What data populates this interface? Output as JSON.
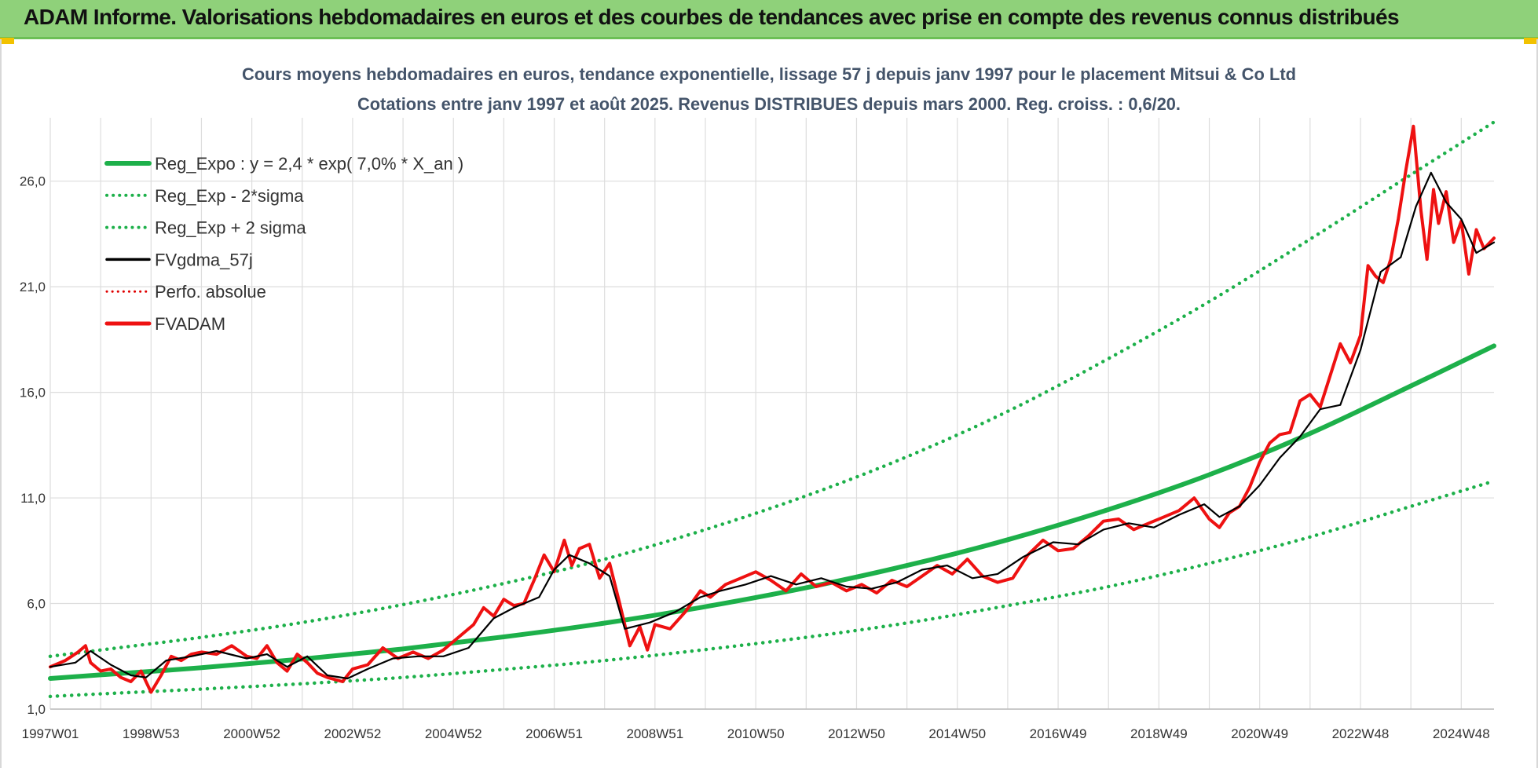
{
  "header": {
    "banner_title": "ADAM Informe. Valorisations hebdomadaires en euros et des courbes de tendances avec prise en compte des revenus connus distribués"
  },
  "colors": {
    "banner_bg": "#8fd17a",
    "regression": "#1db04a",
    "band": "#1db04a",
    "smoothed": "#000000",
    "perf": "#e00000",
    "fvadam": "#ee1111",
    "grid": "#dddddd"
  },
  "chart_data": {
    "type": "line",
    "title": "Cours moyens hebdomadaires en euros, tendance exponentielle, lissage 57 j depuis janv 1997 pour le placement Mitsui & Co Ltd",
    "subtitle": "Cotations entre janv 1997 et août 2025. Revenus DISTRIBUES depuis mars 2000. Reg. croiss. : 0,6/20.",
    "xlabel": "",
    "ylabel": "",
    "x_range": [
      1997.0,
      2025.65
    ],
    "ylim": [
      1.0,
      29.0
    ],
    "y_ticks": [
      1.0,
      6.0,
      11.0,
      16.0,
      21.0,
      26.0
    ],
    "y_tick_labels": [
      "1,0",
      "6,0",
      "11,0",
      "16,0",
      "21,0",
      "26,0"
    ],
    "x_tick_labels": [
      "1997W01",
      "1998W53",
      "2000W52",
      "2002W52",
      "2004W52",
      "2006W51",
      "2008W51",
      "2010W50",
      "2012W50",
      "2014W50",
      "2016W49",
      "2018W49",
      "2020W49",
      "2022W48",
      "2024W48"
    ],
    "x_tick_positions": [
      1997.0,
      1999.0,
      2001.0,
      2003.0,
      2005.0,
      2007.0,
      2009.0,
      2011.0,
      2013.0,
      2015.0,
      2017.0,
      2019.0,
      2021.0,
      2023.0,
      2025.0
    ],
    "grid": true,
    "legend_position": "top-left",
    "series": [
      {
        "name": "Reg_Expo : y = 2,4 * exp( 7,0% *  X_an )",
        "style": "thick-solid",
        "color": "#1db04a",
        "x": [
          1997.0,
          1998.0,
          2000.0,
          2002.0,
          2004.0,
          2006.0,
          2008.0,
          2010.0,
          2012.0,
          2014.0,
          2016.0,
          2018.0,
          2020.0,
          2022.0,
          2024.0,
          2025.65
        ],
        "values": [
          2.45,
          2.62,
          2.96,
          3.37,
          3.85,
          4.42,
          5.07,
          5.85,
          6.75,
          7.8,
          9.02,
          10.45,
          12.1,
          14.05,
          16.3,
          18.2
        ]
      },
      {
        "name": "Reg_Exp - 2*sigma",
        "style": "dotted",
        "color": "#1db04a",
        "x": [
          1997.0,
          1998.0,
          2000.0,
          2002.0,
          2004.0,
          2006.0,
          2008.0,
          2010.0,
          2012.0,
          2014.0,
          2016.0,
          2018.0,
          2020.0,
          2022.0,
          2024.0,
          2025.65
        ],
        "values": [
          1.6,
          1.72,
          1.95,
          2.2,
          2.5,
          2.88,
          3.3,
          3.82,
          4.4,
          5.08,
          5.9,
          6.8,
          7.9,
          9.15,
          10.6,
          11.8
        ]
      },
      {
        "name": "Reg_Exp + 2 sigma",
        "style": "dotted",
        "color": "#1db04a",
        "x": [
          1997.0,
          1998.0,
          2000.0,
          2002.0,
          2004.0,
          2006.0,
          2008.0,
          2010.0,
          2012.0,
          2014.0,
          2016.0,
          2018.0,
          2020.0,
          2022.0,
          2024.0,
          2025.65
        ],
        "values": [
          3.5,
          3.8,
          4.4,
          5.1,
          5.95,
          6.95,
          8.1,
          9.5,
          11.1,
          12.95,
          15.1,
          17.6,
          20.3,
          23.25,
          26.3,
          28.8
        ]
      },
      {
        "name": "FVgdma_57j",
        "style": "solid",
        "color": "#000000",
        "x": [
          1997.0,
          1997.5,
          1997.8,
          1998.2,
          1998.6,
          1998.9,
          1999.3,
          1999.8,
          2000.3,
          2000.9,
          2001.3,
          2001.7,
          2002.1,
          2002.5,
          2002.9,
          2003.3,
          2003.8,
          2004.3,
          2004.8,
          2005.3,
          2005.8,
          2006.2,
          2006.7,
          2007.0,
          2007.3,
          2007.7,
          2008.1,
          2008.4,
          2008.9,
          2009.4,
          2009.9,
          2010.3,
          2010.8,
          2011.3,
          2011.8,
          2012.3,
          2012.8,
          2013.3,
          2013.8,
          2014.3,
          2014.8,
          2015.3,
          2015.8,
          2016.3,
          2016.9,
          2017.4,
          2017.9,
          2018.4,
          2018.9,
          2019.4,
          2019.9,
          2020.2,
          2020.6,
          2021.0,
          2021.4,
          2021.8,
          2022.2,
          2022.6,
          2023.0,
          2023.4,
          2023.8,
          2024.1,
          2024.4,
          2024.7,
          2025.0,
          2025.3,
          2025.65
        ],
        "values": [
          3.0,
          3.2,
          3.75,
          3.1,
          2.6,
          2.5,
          3.3,
          3.5,
          3.75,
          3.4,
          3.6,
          3.0,
          3.5,
          2.6,
          2.45,
          2.9,
          3.4,
          3.5,
          3.5,
          3.9,
          5.3,
          5.8,
          6.3,
          7.6,
          8.3,
          7.9,
          7.3,
          4.8,
          5.1,
          5.6,
          6.3,
          6.6,
          6.9,
          7.3,
          6.9,
          7.2,
          6.8,
          6.7,
          7.0,
          7.6,
          7.8,
          7.2,
          7.4,
          8.2,
          8.9,
          8.8,
          9.5,
          9.8,
          9.6,
          10.2,
          10.7,
          10.1,
          10.6,
          11.6,
          12.9,
          13.9,
          15.2,
          15.4,
          18.0,
          21.7,
          22.4,
          24.8,
          26.4,
          25.0,
          24.2,
          22.6,
          23.1
        ]
      },
      {
        "name": "Perfo. absolue",
        "style": "dotted",
        "color": "#e00000",
        "x": [],
        "values": []
      },
      {
        "name": "FVADAM",
        "style": "thick-solid",
        "color": "#ee1111",
        "x": [
          1997.0,
          1997.3,
          1997.55,
          1997.7,
          1997.8,
          1998.0,
          1998.2,
          1998.4,
          1998.6,
          1998.8,
          1999.0,
          1999.2,
          1999.4,
          1999.6,
          1999.8,
          2000.0,
          2000.3,
          2000.6,
          2000.9,
          2001.1,
          2001.3,
          2001.5,
          2001.7,
          2001.9,
          2002.1,
          2002.3,
          2002.5,
          2002.8,
          2003.0,
          2003.3,
          2003.6,
          2003.9,
          2004.2,
          2004.5,
          2004.8,
          2005.1,
          2005.4,
          2005.6,
          2005.8,
          2006.0,
          2006.2,
          2006.4,
          2006.6,
          2006.8,
          2007.0,
          2007.2,
          2007.35,
          2007.5,
          2007.7,
          2007.9,
          2008.1,
          2008.3,
          2008.5,
          2008.7,
          2008.85,
          2009.0,
          2009.3,
          2009.6,
          2009.9,
          2010.1,
          2010.4,
          2010.7,
          2011.0,
          2011.3,
          2011.6,
          2011.9,
          2012.2,
          2012.5,
          2012.8,
          2013.1,
          2013.4,
          2013.7,
          2014.0,
          2014.3,
          2014.6,
          2014.9,
          2015.2,
          2015.5,
          2015.8,
          2016.1,
          2016.4,
          2016.7,
          2017.0,
          2017.3,
          2017.6,
          2017.9,
          2018.2,
          2018.5,
          2018.8,
          2019.1,
          2019.4,
          2019.7,
          2020.0,
          2020.2,
          2020.4,
          2020.6,
          2020.8,
          2021.0,
          2021.2,
          2021.4,
          2021.6,
          2021.8,
          2022.0,
          2022.2,
          2022.4,
          2022.6,
          2022.8,
          2023.0,
          2023.15,
          2023.3,
          2023.45,
          2023.6,
          2023.75,
          2023.9,
          2024.05,
          2024.2,
          2024.32,
          2024.45,
          2024.55,
          2024.7,
          2024.85,
          2025.0,
          2025.15,
          2025.3,
          2025.45,
          2025.65
        ],
        "values": [
          3.0,
          3.3,
          3.7,
          4.0,
          3.2,
          2.8,
          2.9,
          2.5,
          2.3,
          2.8,
          1.8,
          2.6,
          3.5,
          3.3,
          3.6,
          3.7,
          3.6,
          4.0,
          3.5,
          3.4,
          4.0,
          3.2,
          2.8,
          3.6,
          3.2,
          2.7,
          2.5,
          2.3,
          2.9,
          3.1,
          3.9,
          3.4,
          3.7,
          3.4,
          3.8,
          4.4,
          5.0,
          5.8,
          5.4,
          6.2,
          5.9,
          6.0,
          7.1,
          8.3,
          7.5,
          9.0,
          7.8,
          8.6,
          8.8,
          7.2,
          7.9,
          6.0,
          4.0,
          4.9,
          3.8,
          5.0,
          4.8,
          5.6,
          6.6,
          6.3,
          6.9,
          7.2,
          7.5,
          7.1,
          6.6,
          7.4,
          6.8,
          7.0,
          6.6,
          6.9,
          6.5,
          7.1,
          6.8,
          7.3,
          7.8,
          7.4,
          8.1,
          7.3,
          7.0,
          7.2,
          8.3,
          9.0,
          8.5,
          8.6,
          9.2,
          9.9,
          10.0,
          9.5,
          9.8,
          10.1,
          10.4,
          11.0,
          10.0,
          9.6,
          10.3,
          10.6,
          11.5,
          12.7,
          13.6,
          14.0,
          14.1,
          15.6,
          15.9,
          15.3,
          16.8,
          18.3,
          17.4,
          18.7,
          22.0,
          21.5,
          21.2,
          22.3,
          24.2,
          26.5,
          28.6,
          24.6,
          22.3,
          25.6,
          24.0,
          25.5,
          23.1,
          24.1,
          21.6,
          23.7,
          22.8,
          23.3
        ]
      }
    ]
  }
}
